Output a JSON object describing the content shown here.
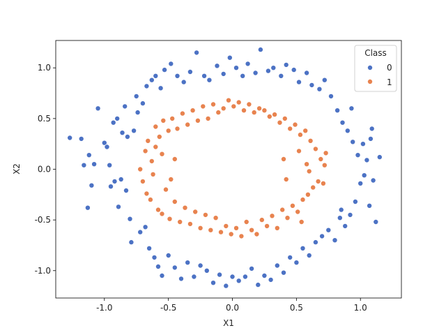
{
  "colors": {
    "class0": "#4C72C4",
    "class1": "#E8834F"
  },
  "chart_data": {
    "type": "scatter",
    "title": "",
    "xlabel": "X1",
    "ylabel": "X2",
    "xlim": [
      -1.38,
      1.32
    ],
    "ylim": [
      -1.27,
      1.27
    ],
    "xticks": [
      "-1.0",
      "-0.5",
      "0.0",
      "0.5",
      "1.0"
    ],
    "xtick_values": [
      -1.0,
      -0.5,
      0.0,
      0.5,
      1.0
    ],
    "yticks": [
      "1.0",
      "0.5",
      "0.0",
      "-0.5",
      "-1.0"
    ],
    "ytick_values": [
      1.0,
      0.5,
      0.0,
      -0.5,
      -1.0
    ],
    "grid": false,
    "legend": {
      "title": "Class",
      "placement": "top-right",
      "entries": [
        "0",
        "1"
      ]
    },
    "series": [
      {
        "name": "0",
        "points": [
          [
            -1.27,
            0.31
          ],
          [
            -1.18,
            0.3
          ],
          [
            -1.16,
            0.04
          ],
          [
            -1.13,
            -0.38
          ],
          [
            -1.12,
            0.14
          ],
          [
            -1.1,
            -0.16
          ],
          [
            -1.08,
            0.05
          ],
          [
            -1.05,
            0.6
          ],
          [
            -1.0,
            0.26
          ],
          [
            -0.98,
            0.22
          ],
          [
            -0.96,
            0.04
          ],
          [
            -0.95,
            -0.17
          ],
          [
            -0.93,
            0.46
          ],
          [
            -0.92,
            -0.12
          ],
          [
            -0.9,
            0.5
          ],
          [
            -0.89,
            -0.37
          ],
          [
            -0.87,
            -0.1
          ],
          [
            -0.86,
            0.36
          ],
          [
            -0.84,
            0.62
          ],
          [
            -0.83,
            -0.21
          ],
          [
            -0.82,
            0.32
          ],
          [
            -0.8,
            -0.49
          ],
          [
            -0.79,
            -0.72
          ],
          [
            -0.77,
            0.38
          ],
          [
            -0.75,
            0.72
          ],
          [
            -0.74,
            0.56
          ],
          [
            -0.72,
            -0.62
          ],
          [
            -0.7,
            0.65
          ],
          [
            -0.68,
            -0.57
          ],
          [
            -0.67,
            0.82
          ],
          [
            -0.65,
            -0.78
          ],
          [
            -0.63,
            0.88
          ],
          [
            -0.61,
            -0.87
          ],
          [
            -0.6,
            0.92
          ],
          [
            -0.58,
            -0.96
          ],
          [
            -0.56,
            0.8
          ],
          [
            -0.55,
            -1.05
          ],
          [
            -0.53,
            0.98
          ],
          [
            -0.5,
            -0.85
          ],
          [
            -0.48,
            1.04
          ],
          [
            -0.45,
            -0.97
          ],
          [
            -0.43,
            0.92
          ],
          [
            -0.4,
            -1.08
          ],
          [
            -0.38,
            0.86
          ],
          [
            -0.35,
            -0.92
          ],
          [
            -0.33,
            0.96
          ],
          [
            -0.3,
            -1.06
          ],
          [
            -0.28,
            1.15
          ],
          [
            -0.25,
            -0.95
          ],
          [
            -0.22,
            0.92
          ],
          [
            -0.2,
            -1.0
          ],
          [
            -0.18,
            0.88
          ],
          [
            -0.15,
            -1.12
          ],
          [
            -0.12,
            1.02
          ],
          [
            -0.1,
            -1.04
          ],
          [
            -0.07,
            0.94
          ],
          [
            -0.05,
            -1.15
          ],
          [
            -0.02,
            1.1
          ],
          [
            0.0,
            -1.06
          ],
          [
            0.03,
            1.0
          ],
          [
            0.05,
            -1.1
          ],
          [
            0.08,
            0.92
          ],
          [
            0.1,
            -1.06
          ],
          [
            0.12,
            1.04
          ],
          [
            0.15,
            -0.98
          ],
          [
            0.18,
            0.95
          ],
          [
            0.2,
            -1.14
          ],
          [
            0.22,
            1.18
          ],
          [
            0.25,
            -1.05
          ],
          [
            0.28,
            0.97
          ],
          [
            0.3,
            -1.09
          ],
          [
            0.32,
            1.0
          ],
          [
            0.35,
            -0.95
          ],
          [
            0.38,
            0.92
          ],
          [
            0.4,
            -1.02
          ],
          [
            0.42,
            1.03
          ],
          [
            0.45,
            -0.87
          ],
          [
            0.48,
            0.98
          ],
          [
            0.5,
            -0.92
          ],
          [
            0.52,
            0.86
          ],
          [
            0.55,
            -0.78
          ],
          [
            0.58,
            0.95
          ],
          [
            0.6,
            -0.85
          ],
          [
            0.62,
            0.83
          ],
          [
            0.65,
            -0.72
          ],
          [
            0.68,
            0.79
          ],
          [
            0.7,
            -0.66
          ],
          [
            0.72,
            0.88
          ],
          [
            0.75,
            -0.6
          ],
          [
            0.77,
            0.72
          ],
          [
            0.8,
            -0.7
          ],
          [
            0.82,
            0.58
          ],
          [
            0.84,
            -0.48
          ],
          [
            0.86,
            0.46
          ],
          [
            0.88,
            -0.56
          ],
          [
            0.9,
            0.38
          ],
          [
            0.92,
            -0.45
          ],
          [
            0.94,
            0.27
          ],
          [
            0.96,
            -0.32
          ],
          [
            0.98,
            0.14
          ],
          [
            1.0,
            -0.14
          ],
          [
            1.02,
            0.25
          ],
          [
            1.03,
            -0.06
          ],
          [
            1.05,
            0.09
          ],
          [
            1.07,
            -0.36
          ],
          [
            1.09,
            0.4
          ],
          [
            1.1,
            -0.11
          ],
          [
            1.12,
            -0.52
          ],
          [
            1.15,
            0.12
          ],
          [
            1.08,
            0.3
          ],
          [
            0.93,
            0.6
          ],
          [
            0.85,
            -0.4
          ]
        ]
      },
      {
        "name": "1",
        "points": [
          [
            -0.72,
            0.0
          ],
          [
            -0.7,
            -0.12
          ],
          [
            -0.68,
            0.18
          ],
          [
            -0.67,
            -0.24
          ],
          [
            -0.66,
            0.28
          ],
          [
            -0.64,
            -0.3
          ],
          [
            -0.63,
            0.08
          ],
          [
            -0.62,
            -0.05
          ],
          [
            -0.6,
            0.42
          ],
          [
            -0.58,
            -0.4
          ],
          [
            -0.57,
            0.32
          ],
          [
            -0.55,
            -0.44
          ],
          [
            -0.54,
            0.48
          ],
          [
            -0.52,
            -0.2
          ],
          [
            -0.5,
            0.38
          ],
          [
            -0.49,
            -0.49
          ],
          [
            -0.47,
            0.5
          ],
          [
            -0.45,
            -0.32
          ],
          [
            -0.43,
            0.4
          ],
          [
            -0.41,
            -0.52
          ],
          [
            -0.39,
            0.55
          ],
          [
            -0.37,
            -0.38
          ],
          [
            -0.35,
            0.44
          ],
          [
            -0.33,
            -0.54
          ],
          [
            -0.31,
            0.58
          ],
          [
            -0.29,
            -0.42
          ],
          [
            -0.27,
            0.48
          ],
          [
            -0.25,
            -0.58
          ],
          [
            -0.23,
            0.62
          ],
          [
            -0.21,
            -0.45
          ],
          [
            -0.19,
            0.5
          ],
          [
            -0.17,
            -0.6
          ],
          [
            -0.15,
            0.64
          ],
          [
            -0.13,
            -0.48
          ],
          [
            -0.11,
            0.56
          ],
          [
            -0.09,
            -0.62
          ],
          [
            -0.07,
            0.6
          ],
          [
            -0.05,
            -0.56
          ],
          [
            -0.03,
            0.68
          ],
          [
            -0.01,
            -0.64
          ],
          [
            0.01,
            0.62
          ],
          [
            0.03,
            -0.58
          ],
          [
            0.05,
            0.66
          ],
          [
            0.07,
            -0.66
          ],
          [
            0.09,
            0.58
          ],
          [
            0.11,
            -0.52
          ],
          [
            0.13,
            0.64
          ],
          [
            0.15,
            -0.6
          ],
          [
            0.17,
            0.56
          ],
          [
            0.19,
            -0.64
          ],
          [
            0.21,
            0.6
          ],
          [
            0.23,
            -0.5
          ],
          [
            0.25,
            0.58
          ],
          [
            0.27,
            -0.56
          ],
          [
            0.29,
            0.52
          ],
          [
            0.31,
            -0.46
          ],
          [
            0.33,
            0.54
          ],
          [
            0.35,
            -0.58
          ],
          [
            0.37,
            0.46
          ],
          [
            0.39,
            -0.4
          ],
          [
            0.41,
            0.5
          ],
          [
            0.43,
            -0.48
          ],
          [
            0.45,
            0.4
          ],
          [
            0.47,
            -0.36
          ],
          [
            0.49,
            0.44
          ],
          [
            0.51,
            -0.42
          ],
          [
            0.53,
            0.34
          ],
          [
            0.55,
            -0.3
          ],
          [
            0.57,
            0.38
          ],
          [
            0.59,
            -0.25
          ],
          [
            0.61,
            0.28
          ],
          [
            0.63,
            -0.18
          ],
          [
            0.65,
            0.2
          ],
          [
            0.67,
            -0.12
          ],
          [
            0.69,
            0.1
          ],
          [
            0.71,
            -0.14
          ],
          [
            0.72,
            0.04
          ],
          [
            0.73,
            0.16
          ],
          [
            0.58,
            0.05
          ],
          [
            0.6,
            -0.02
          ],
          [
            0.4,
            0.1
          ],
          [
            0.42,
            -0.1
          ],
          [
            0.52,
            0.18
          ],
          [
            -0.45,
            0.1
          ],
          [
            -0.48,
            -0.1
          ],
          [
            -0.55,
            0.15
          ],
          [
            0.54,
            -0.52
          ],
          [
            -0.6,
            0.22
          ]
        ]
      }
    ]
  }
}
